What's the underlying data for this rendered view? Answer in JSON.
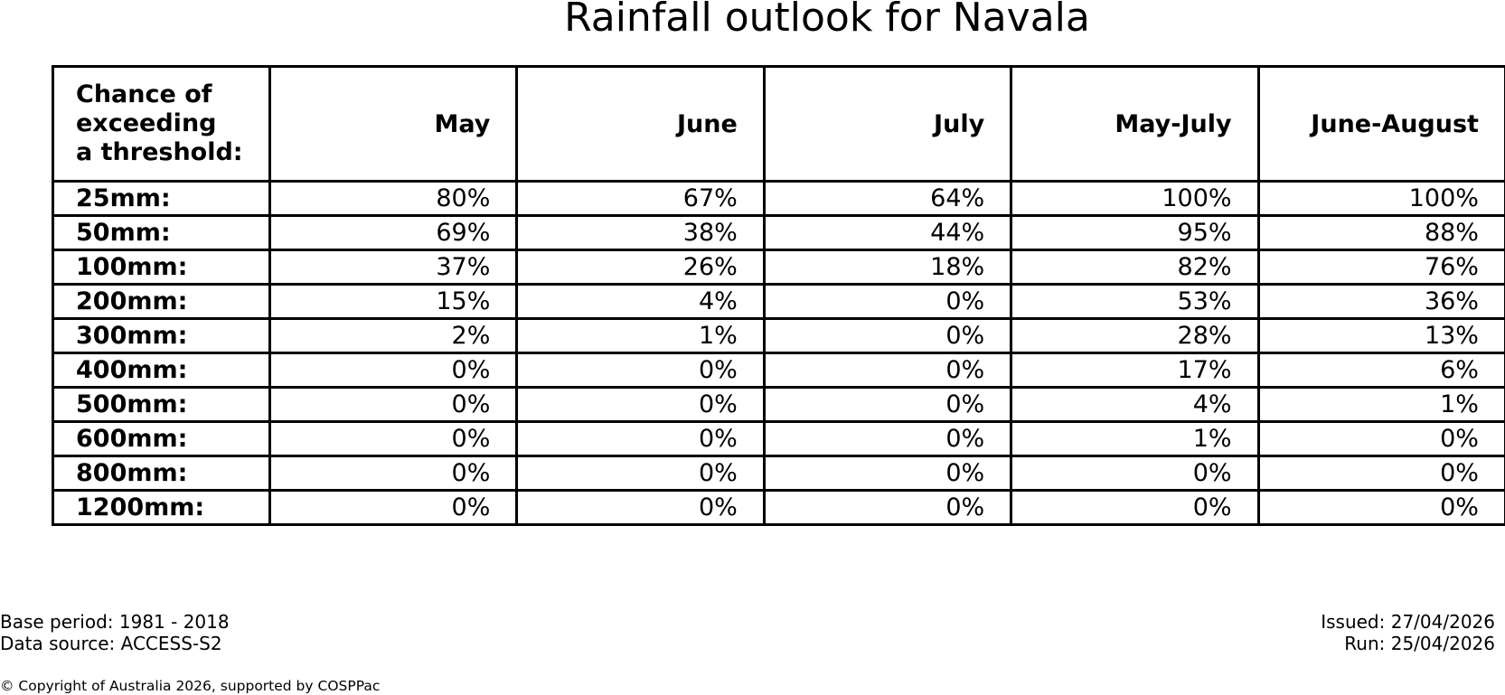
{
  "title": "Rainfall outlook for Navala",
  "chart_data": {
    "type": "table",
    "title": "Rainfall outlook for Navala",
    "corner_header": [
      "Chance of",
      "exceeding",
      "a threshold:"
    ],
    "columns": [
      "May",
      "June",
      "July",
      "May-July",
      "June-August"
    ],
    "rows": [
      {
        "threshold": "25mm:",
        "values": [
          "80%",
          "67%",
          "64%",
          "100%",
          "100%"
        ]
      },
      {
        "threshold": "50mm:",
        "values": [
          "69%",
          "38%",
          "44%",
          "95%",
          "88%"
        ]
      },
      {
        "threshold": "100mm:",
        "values": [
          "37%",
          "26%",
          "18%",
          "82%",
          "76%"
        ]
      },
      {
        "threshold": "200mm:",
        "values": [
          "15%",
          "4%",
          "0%",
          "53%",
          "36%"
        ]
      },
      {
        "threshold": "300mm:",
        "values": [
          "2%",
          "1%",
          "0%",
          "28%",
          "13%"
        ]
      },
      {
        "threshold": "400mm:",
        "values": [
          "0%",
          "0%",
          "0%",
          "17%",
          "6%"
        ]
      },
      {
        "threshold": "500mm:",
        "values": [
          "0%",
          "0%",
          "0%",
          "4%",
          "1%"
        ]
      },
      {
        "threshold": "600mm:",
        "values": [
          "0%",
          "0%",
          "0%",
          "1%",
          "0%"
        ]
      },
      {
        "threshold": "800mm:",
        "values": [
          "0%",
          "0%",
          "0%",
          "0%",
          "0%"
        ]
      },
      {
        "threshold": "1200mm:",
        "values": [
          "0%",
          "0%",
          "0%",
          "0%",
          "0%"
        ]
      }
    ]
  },
  "footer": {
    "base_period": "Base period: 1981 - 2018",
    "data_source": "Data source: ACCESS-S2",
    "issued": "Issued: 27/04/2026",
    "run": "Run: 25/04/2026",
    "copyright": "© Copyright of Australia 2026, supported by COSPPac"
  }
}
